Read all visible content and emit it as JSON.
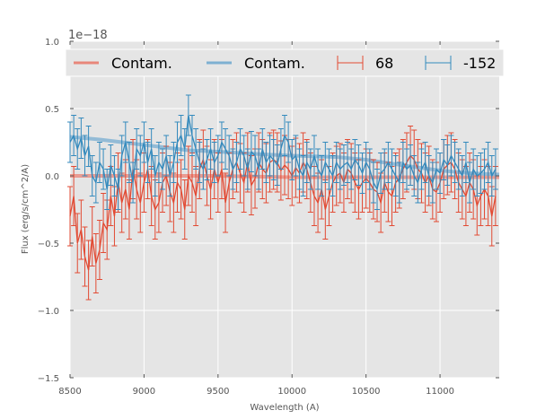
{
  "chart_data": {
    "type": "line",
    "title": "",
    "xlabel": "Wavelength (A)",
    "ylabel": "Flux (erg/s/cm^2/A)",
    "y_offset_label": "1e−18",
    "xlim": [
      8500,
      11400
    ],
    "ylim": [
      -1.5,
      1.0
    ],
    "x_ticks": [
      8500,
      9000,
      9500,
      10000,
      10500,
      11000
    ],
    "x_tick_labels": [
      "8500",
      "9000",
      "9500",
      "10000",
      "10500",
      "11000"
    ],
    "y_ticks": [
      -1.5,
      -1.0,
      -0.5,
      0.0,
      0.5,
      1.0
    ],
    "y_tick_labels": [
      "−1.5",
      "−1.0",
      "−0.5",
      "0.0",
      "0.5",
      "1.0"
    ],
    "grid": true,
    "background": "#e5e5e5",
    "legend": {
      "placement": "top",
      "columns": 4,
      "entries": [
        {
          "label": "Contam.",
          "kind": "line",
          "color": "#e8877a"
        },
        {
          "label": "Contam.",
          "kind": "line",
          "color": "#7eb0d2"
        },
        {
          "label": "68",
          "kind": "errorbar",
          "color": "#e24a33"
        },
        {
          "label": "-152",
          "kind": "errorbar",
          "color": "#348abd"
        }
      ]
    },
    "series": [
      {
        "name": "Contam.",
        "kind": "line",
        "color": "#e8877a",
        "x": [
          8500,
          9000,
          9500,
          10000,
          10500,
          11000,
          11400
        ],
        "y": [
          0.0,
          0.0,
          0.0,
          -0.01,
          -0.01,
          -0.01,
          -0.01
        ]
      },
      {
        "name": "Contam.",
        "kind": "line",
        "color": "#7eb0d2",
        "x": [
          8500,
          8700,
          9000,
          9300,
          9500,
          9800,
          10000,
          10300,
          10500,
          10800,
          11000,
          11200,
          11400
        ],
        "y": [
          0.29,
          0.27,
          0.23,
          0.19,
          0.18,
          0.16,
          0.15,
          0.14,
          0.12,
          0.07,
          0.04,
          0.02,
          0.01
        ]
      },
      {
        "name": "68",
        "kind": "errorbar",
        "color": "#e24a33",
        "x": [
          8500,
          8525,
          8550,
          8575,
          8600,
          8625,
          8650,
          8675,
          8700,
          8725,
          8750,
          8775,
          8800,
          8825,
          8850,
          8875,
          8900,
          8925,
          8950,
          8975,
          9000,
          9025,
          9050,
          9075,
          9100,
          9125,
          9150,
          9175,
          9200,
          9225,
          9250,
          9275,
          9300,
          9325,
          9350,
          9375,
          9400,
          9425,
          9450,
          9475,
          9500,
          9525,
          9550,
          9575,
          9600,
          9625,
          9650,
          9675,
          9700,
          9725,
          9750,
          9775,
          9800,
          9825,
          9850,
          9875,
          9900,
          9925,
          9950,
          9975,
          10000,
          10025,
          10050,
          10075,
          10100,
          10125,
          10150,
          10175,
          10200,
          10225,
          10250,
          10275,
          10300,
          10325,
          10350,
          10375,
          10400,
          10425,
          10450,
          10475,
          10500,
          10525,
          10550,
          10575,
          10600,
          10625,
          10650,
          10675,
          10700,
          10725,
          10750,
          10775,
          10800,
          10825,
          10850,
          10875,
          10900,
          10925,
          10950,
          10975,
          11000,
          11025,
          11050,
          11075,
          11100,
          11125,
          11150,
          11175,
          11200,
          11225,
          11250,
          11275,
          11300,
          11325,
          11350,
          11375
        ],
        "y": [
          -0.3,
          -0.15,
          -0.5,
          -0.4,
          -0.6,
          -0.7,
          -0.45,
          -0.65,
          -0.55,
          -0.35,
          -0.4,
          -0.15,
          -0.3,
          -0.05,
          -0.2,
          -0.1,
          -0.25,
          0.05,
          -0.1,
          -0.2,
          -0.05,
          0.05,
          -0.15,
          -0.25,
          -0.2,
          -0.05,
          0.0,
          -0.12,
          -0.2,
          -0.05,
          -0.1,
          -0.25,
          0.0,
          -0.05,
          -0.15,
          0.05,
          0.12,
          0.0,
          -0.1,
          0.05,
          -0.05,
          0.05,
          -0.2,
          -0.05,
          0.05,
          0.1,
          0.02,
          -0.05,
          0.1,
          -0.07,
          -0.02,
          0.1,
          0.05,
          0.02,
          0.1,
          0.12,
          0.1,
          0.04,
          0.08,
          0.05,
          0.0,
          0.06,
          0.02,
          0.1,
          0.05,
          -0.05,
          -0.15,
          -0.2,
          -0.1,
          -0.25,
          -0.15,
          -0.05,
          0.0,
          0.02,
          -0.05,
          0.05,
          0.02,
          -0.05,
          -0.1,
          -0.05,
          -0.02,
          -0.05,
          -0.1,
          -0.12,
          -0.2,
          -0.05,
          -0.12,
          -0.15,
          -0.05,
          -0.02,
          0.05,
          0.1,
          0.15,
          0.12,
          0.05,
          0.02,
          -0.05,
          0.0,
          -0.1,
          -0.12,
          -0.05,
          0.05,
          0.08,
          0.1,
          0.05,
          -0.05,
          -0.1,
          -0.15,
          -0.05,
          -0.1,
          -0.22,
          -0.15,
          -0.1,
          -0.15,
          -0.3,
          -0.15
        ],
        "err": 0.22
      },
      {
        "name": "-152",
        "kind": "errorbar",
        "color": "#348abd",
        "x": [
          8500,
          8525,
          8550,
          8575,
          8600,
          8625,
          8650,
          8675,
          8700,
          8725,
          8750,
          8775,
          8800,
          8825,
          8850,
          8875,
          8900,
          8925,
          8950,
          8975,
          9000,
          9025,
          9050,
          9075,
          9100,
          9125,
          9150,
          9175,
          9200,
          9225,
          9250,
          9275,
          9300,
          9325,
          9350,
          9375,
          9400,
          9425,
          9450,
          9475,
          9500,
          9525,
          9550,
          9575,
          9600,
          9625,
          9650,
          9675,
          9700,
          9725,
          9750,
          9775,
          9800,
          9825,
          9850,
          9875,
          9900,
          9925,
          9950,
          9975,
          10000,
          10025,
          10050,
          10075,
          10100,
          10125,
          10150,
          10175,
          10200,
          10225,
          10250,
          10275,
          10300,
          10325,
          10350,
          10375,
          10400,
          10425,
          10450,
          10475,
          10500,
          10525,
          10550,
          10575,
          10600,
          10625,
          10650,
          10675,
          10700,
          10725,
          10750,
          10775,
          10800,
          10825,
          10850,
          10875,
          10900,
          10925,
          10950,
          10975,
          11000,
          11025,
          11050,
          11075,
          11100,
          11125,
          11150,
          11175,
          11200,
          11225,
          11250,
          11275,
          11300,
          11325,
          11350,
          11375
        ],
        "y": [
          0.25,
          0.3,
          0.2,
          0.28,
          0.15,
          0.22,
          0.0,
          -0.05,
          0.1,
          0.05,
          -0.1,
          0.08,
          0.0,
          -0.1,
          0.15,
          0.25,
          0.1,
          -0.05,
          0.2,
          0.15,
          0.25,
          0.1,
          0.2,
          0.0,
          0.1,
          0.05,
          0.15,
          0.0,
          0.1,
          0.25,
          0.3,
          0.2,
          0.45,
          0.3,
          0.2,
          0.1,
          0.05,
          0.12,
          0.2,
          0.1,
          0.15,
          0.25,
          0.2,
          0.15,
          0.05,
          0.1,
          0.2,
          0.15,
          0.05,
          0.18,
          0.15,
          0.05,
          0.2,
          0.1,
          0.15,
          0.12,
          0.08,
          0.2,
          0.3,
          0.25,
          0.12,
          0.15,
          0.05,
          0.0,
          0.1,
          0.05,
          0.15,
          0.05,
          0.0,
          0.1,
          0.05,
          0.0,
          0.1,
          0.05,
          0.08,
          0.1,
          0.05,
          0.12,
          0.08,
          0.02,
          0.1,
          0.05,
          -0.05,
          -0.1,
          0.02,
          0.05,
          0.1,
          0.05,
          0.0,
          -0.05,
          0.1,
          0.05,
          0.08,
          0.0,
          -0.05,
          0.05,
          0.1,
          0.0,
          -0.05,
          0.05,
          0.02,
          0.12,
          0.08,
          0.15,
          0.1,
          0.05,
          0.0,
          0.1,
          -0.05,
          0.05,
          0.0,
          0.02,
          0.05,
          0.1,
          0.0,
          0.05
        ],
        "err": 0.15
      }
    ]
  }
}
